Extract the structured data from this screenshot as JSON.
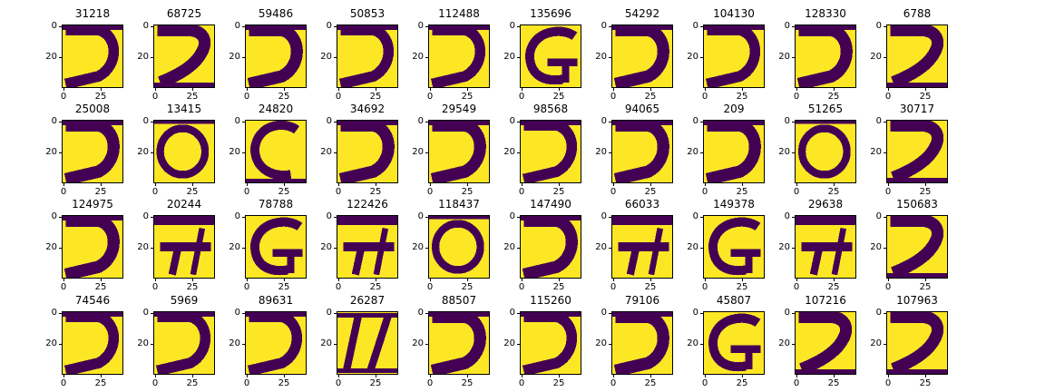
{
  "colors": {
    "foreground": "#fde725",
    "background": "#440154"
  },
  "chart_data": {
    "type": "heatmap",
    "layout": "grid of 40 image subplots (4 rows x 10 columns)",
    "image_shape": [
      40,
      40
    ],
    "colormap": "viridis (binary: purple / yellow)",
    "yticks": [
      0,
      20
    ],
    "xticks": [
      0,
      25
    ],
    "titles": [
      "31218",
      "68725",
      "59486",
      "50853",
      "112488",
      "135696",
      "54292",
      "104130",
      "128330",
      "6788",
      "25008",
      "13415",
      "24820",
      "34692",
      "29549",
      "98568",
      "94065",
      "209",
      "51265",
      "30717",
      "124975",
      "20244",
      "78788",
      "122426",
      "118437",
      "147490",
      "66033",
      "149378",
      "29638",
      "150683",
      "74546",
      "5969",
      "89631",
      "26287",
      "88507",
      "115260",
      "79106",
      "45807",
      "107216",
      "107963"
    ],
    "glyph_types": [
      "D",
      "2",
      "D",
      "D",
      "D",
      "G",
      "D",
      "D",
      "D",
      "2",
      "D",
      "O",
      "C",
      "D",
      "D",
      "D",
      "D",
      "D",
      "O",
      "2",
      "D",
      "F",
      "G",
      "F",
      "O",
      "D",
      "F",
      "G",
      "F",
      "2",
      "D",
      "D",
      "D",
      "W",
      "D",
      "D",
      "D",
      "G",
      "2",
      "2"
    ]
  }
}
